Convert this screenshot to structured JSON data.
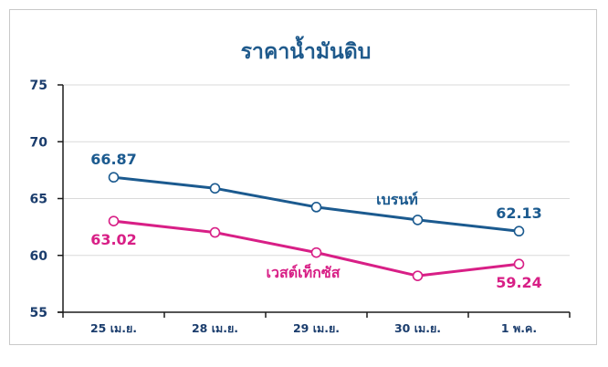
{
  "chart_data": {
    "type": "line",
    "title": "ราคาน้ำมันดิบ",
    "categories": [
      "25 เม.ย.",
      "28 เม.ย.",
      "29 เม.ย.",
      "30 เม.ย.",
      "1 พ.ค."
    ],
    "y_ticks": [
      "55",
      "60",
      "65",
      "70",
      "75"
    ],
    "ylim": [
      55,
      75
    ],
    "grid": "horizontal",
    "series": [
      {
        "name": "เบรนท์",
        "color": "#1b5a8f",
        "values": [
          66.87,
          65.9,
          64.25,
          63.12,
          62.13
        ],
        "labels": [
          {
            "index": 0,
            "text": "66.87"
          },
          {
            "index": 4,
            "text": "62.13"
          }
        ]
      },
      {
        "name": "เวสต์เท็กซัส",
        "color": "#d81f86",
        "values": [
          63.02,
          62.02,
          60.25,
          58.2,
          59.24
        ],
        "labels": [
          {
            "index": 0,
            "text": "63.02"
          },
          {
            "index": 4,
            "text": "59.24"
          }
        ]
      }
    ]
  }
}
